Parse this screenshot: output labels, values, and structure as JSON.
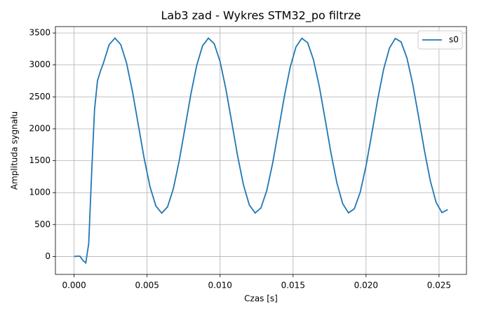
{
  "chart_data": {
    "type": "line",
    "title": "Lab3 zad - Wykres STM32_po filtrze",
    "x_label": "Czas [s]",
    "y_label": "Amplituda sygnału",
    "x": [
      0,
      0.0002,
      0.0004,
      0.0006,
      0.0008,
      0.001,
      0.0012,
      0.0014,
      0.0016,
      0.0018,
      0.002,
      0.0024,
      0.0028,
      0.0032,
      0.0036,
      0.004,
      0.0044,
      0.0048,
      0.0052,
      0.0056,
      0.006,
      0.0064,
      0.0068,
      0.0072,
      0.0076,
      0.008,
      0.0084,
      0.0088,
      0.0092,
      0.0096,
      0.01,
      0.0104,
      0.0108,
      0.0112,
      0.0116,
      0.012,
      0.0124,
      0.0128,
      0.0132,
      0.0136,
      0.014,
      0.0144,
      0.0148,
      0.0152,
      0.0156,
      0.016,
      0.0164,
      0.0168,
      0.0172,
      0.0176,
      0.018,
      0.0184,
      0.0188,
      0.0192,
      0.0196,
      0.02,
      0.0204,
      0.0208,
      0.0212,
      0.0216,
      0.022,
      0.0224,
      0.0228,
      0.0232,
      0.0236,
      0.024,
      0.0244,
      0.0248,
      0.0252,
      0.0256
    ],
    "series": [
      {
        "name": "s0",
        "color": "#1f77b4",
        "values": [
          0,
          5,
          5,
          -60,
          -100,
          200,
          1300,
          2300,
          2750,
          2900,
          3023,
          3317,
          3420,
          3317,
          3023,
          2581,
          2060,
          1537,
          1092,
          792,
          680,
          776,
          1062,
          1499,
          2018,
          2543,
          2993,
          3299,
          3419,
          3332,
          3052,
          2620,
          2102,
          1577,
          1123,
          809,
          681,
          761,
          1034,
          1460,
          1976,
          2503,
          2961,
          3282,
          3417,
          3347,
          3080,
          2660,
          2146,
          1617,
          1155,
          827,
          684,
          747,
          1006,
          1421,
          1932,
          2462,
          2928,
          3262,
          3414,
          3360,
          3109,
          2698,
          2188,
          1658,
          1188,
          847,
          688,
          735
        ]
      }
    ],
    "xlim": [
      -0.00128,
      0.02688
    ],
    "ylim": [
      -280,
      3600
    ],
    "xticks": [
      {
        "value": 0,
        "label": "0.000"
      },
      {
        "value": 0.005,
        "label": "0.005"
      },
      {
        "value": 0.01,
        "label": "0.010"
      },
      {
        "value": 0.015,
        "label": "0.015"
      },
      {
        "value": 0.02,
        "label": "0.020"
      },
      {
        "value": 0.025,
        "label": "0.025"
      }
    ],
    "yticks": [
      0,
      500,
      1000,
      1500,
      2000,
      2500,
      3000,
      3500
    ],
    "grid": true,
    "legend": "upper right"
  }
}
